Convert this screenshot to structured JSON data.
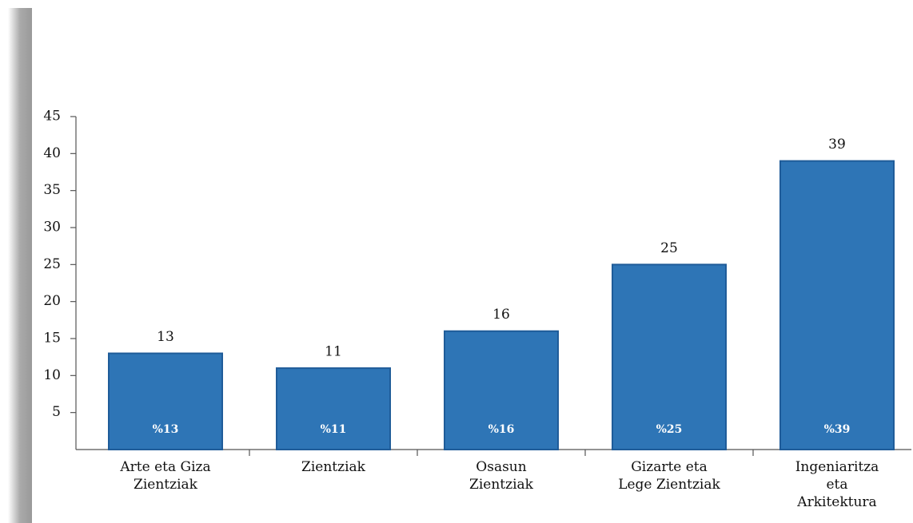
{
  "chart_data": {
    "type": "bar",
    "categories": [
      "Arte eta Giza\nZientziak",
      "Zientziak",
      "Osasun\nZientziak",
      "Gizarte eta\nLege Zientziak",
      "Ingeniaritza\neta\nArkitektura"
    ],
    "values": [
      13,
      11,
      16,
      25,
      39
    ],
    "value_labels": [
      "%13",
      "%11",
      "%16",
      "%25",
      "%39"
    ],
    "color": "#2e75b6",
    "ylim": [
      0,
      45
    ],
    "yticks": [
      5,
      10,
      15,
      20,
      25,
      30,
      35,
      40,
      45
    ],
    "grid": false
  }
}
